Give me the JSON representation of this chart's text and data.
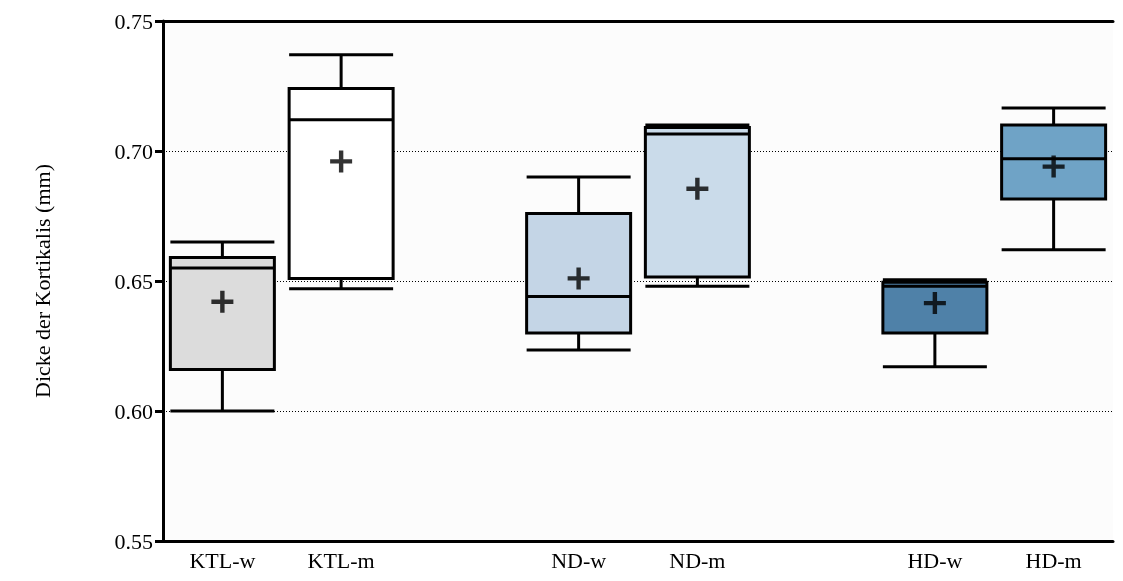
{
  "chart_data": {
    "type": "box",
    "ylabel": "Dicke der Kortikalis (mm)",
    "categories": [
      "KTL-w",
      "KTL-m",
      null,
      "ND-w",
      "ND-m",
      null,
      "HD-w",
      "HD-m"
    ],
    "boxes": [
      {
        "low": 0.6,
        "q1": 0.616,
        "median": 0.655,
        "q3": 0.659,
        "high": 0.665
      },
      {
        "low": 0.647,
        "q1": 0.651,
        "median": 0.712,
        "q3": 0.724,
        "high": 0.737
      },
      null,
      {
        "low": 0.6235,
        "q1": 0.63,
        "median": 0.644,
        "q3": 0.676,
        "high": 0.69
      },
      {
        "low": 0.648,
        "q1": 0.6515,
        "median": 0.7065,
        "q3": 0.709,
        "high": 0.71
      },
      null,
      {
        "low": 0.617,
        "q1": 0.63,
        "median": 0.648,
        "q3": 0.6495,
        "high": 0.6505
      },
      {
        "low": 0.662,
        "q1": 0.6815,
        "median": 0.697,
        "q3": 0.71,
        "high": 0.7165
      }
    ],
    "colors": [
      "#dcdcdc",
      "#ffffff",
      null,
      "#c4d5e6",
      "#cadbea",
      null,
      "#4f81a8",
      "#6fa3c6"
    ],
    "series": [
      {
        "type": "scatter",
        "x": [
          "KTL-w",
          "KTL-m",
          "ND-w",
          "ND-m",
          "HD-w",
          "HD-m"
        ],
        "values": [
          0.642,
          0.696,
          0.651,
          0.6855,
          0.6415,
          0.694
        ],
        "color": "#000000",
        "marker": "cross"
      }
    ],
    "ylim": [
      0.55,
      0.75
    ],
    "yticks": [
      {
        "value": 0.55,
        "label": "0.55"
      },
      {
        "value": 0.6,
        "label": "0.60"
      },
      {
        "value": 0.65,
        "label": "0.65"
      },
      {
        "value": 0.7,
        "label": "0.70"
      },
      {
        "value": 0.75,
        "label": "0.75"
      }
    ],
    "grid": "y"
  }
}
